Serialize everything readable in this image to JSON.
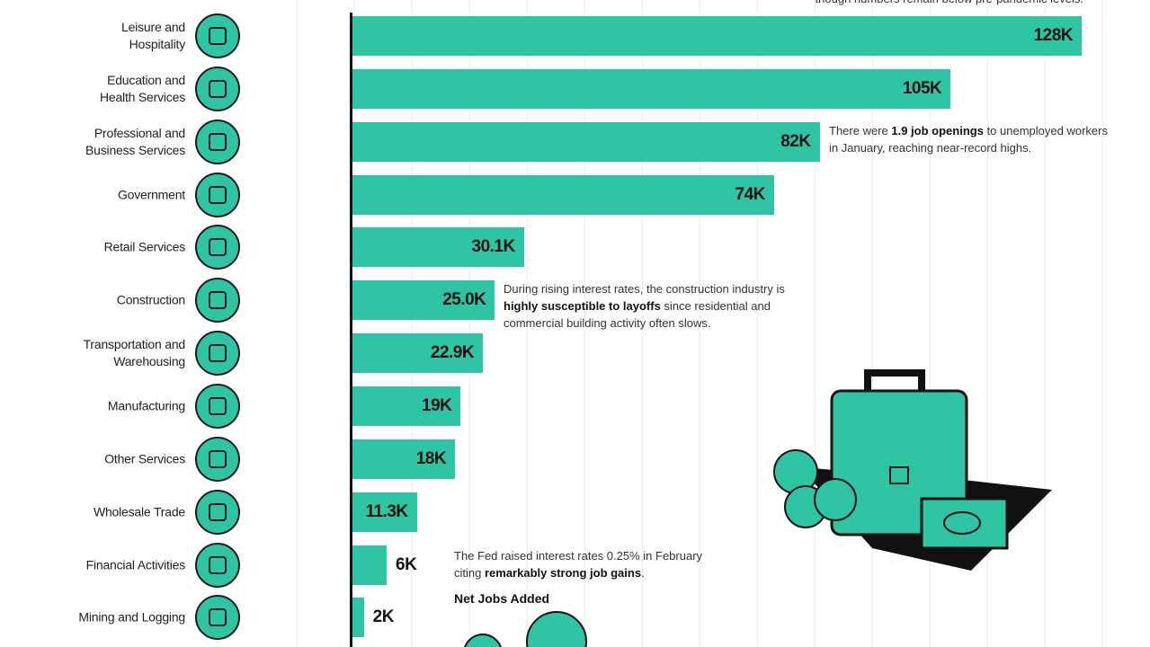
{
  "chart_data": {
    "type": "bar",
    "categories": [
      "Leisure and\nHospitality",
      "Education and\nHealth Services",
      "Professional and\nBusiness Services",
      "Government",
      "Retail Services",
      "Construction",
      "Transportation and\nWarehousing",
      "Manufacturing",
      "Other Services",
      "Wholesale Trade",
      "Financial Activities",
      "Mining and Logging"
    ],
    "values": [
      128000,
      105000,
      82000,
      74000,
      30100,
      25000,
      22900,
      19000,
      18000,
      11300,
      6000,
      2000
    ],
    "value_labels": [
      "128K",
      "105K",
      "82K",
      "74K",
      "30.1K",
      "25.0K",
      "22.9K",
      "19K",
      "18K",
      "11.3K",
      "6K",
      "2K"
    ],
    "color": "#2fc4a4",
    "annotations": [
      [
        {
          "text": "though numbers remain below pre-pandemic levels.",
          "bold": false
        }
      ],
      [
        {
          "text": "There were ",
          "bold": false
        },
        {
          "text": "1.9 job openings",
          "bold": true
        },
        {
          "text": " to unemployed workers in January, reaching near-record highs.",
          "bold": false
        }
      ],
      [
        {
          "text": "During rising interest rates, the construction industry is ",
          "bold": false
        },
        {
          "text": "highly susceptible to layoffs",
          "bold": true
        },
        {
          "text": " since residential and commercial building activity often slows.",
          "bold": false
        }
      ],
      [
        {
          "text": "The Fed raised interest rates 0.25% in February citing ",
          "bold": false
        },
        {
          "text": "remarkably strong job gains",
          "bold": true
        },
        {
          "text": ".",
          "bold": false
        }
      ]
    ],
    "subtitle": "Net Jobs Added"
  }
}
